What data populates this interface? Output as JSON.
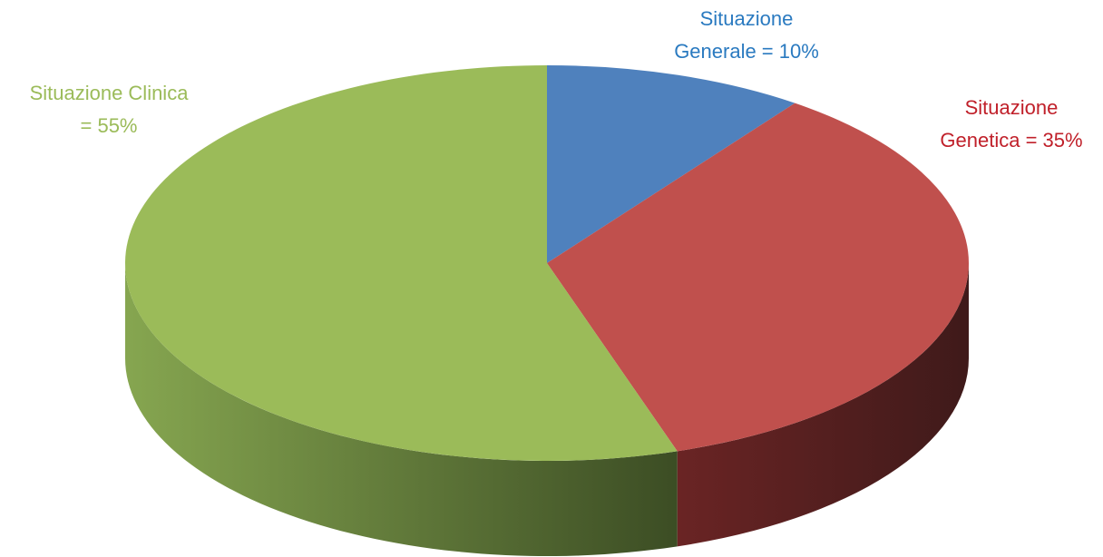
{
  "chart_data": {
    "type": "pie",
    "values": [
      10,
      35,
      55
    ],
    "value_labels": [
      [
        "Situazione",
        "Generale = 10%"
      ],
      [
        "Situazione",
        "Genetica = 35%"
      ],
      [
        "Situazione Clinica",
        "= 55%"
      ]
    ],
    "colors": [
      "#4f81bd",
      "#c0504d",
      "#9bbb59"
    ],
    "side_colors": [
      [
        "#3a6190",
        "#22406a"
      ],
      [
        "#6a2424",
        "#3f1a1a"
      ],
      [
        "#86a650",
        "#3c4d24"
      ]
    ],
    "label_colors": [
      "#2a7ac0",
      "#c0202a",
      "#9bbb59"
    ]
  }
}
